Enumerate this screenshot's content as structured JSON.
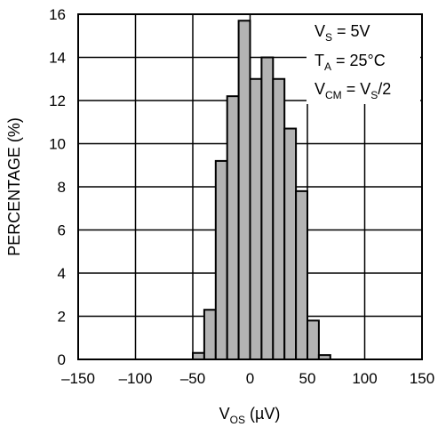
{
  "chart_data": {
    "type": "bar",
    "xlabel": {
      "main": "V",
      "sub": "OS",
      "unit": " (µV)"
    },
    "ylabel": "PERCENTAGE (%)",
    "xlim": [
      -150,
      150
    ],
    "ylim": [
      0,
      16
    ],
    "xticks": [
      -150,
      -100,
      -50,
      0,
      50,
      100,
      150
    ],
    "yticks": [
      0,
      2,
      4,
      6,
      8,
      10,
      12,
      14,
      16
    ],
    "grid": true,
    "legend_position": "top-right",
    "annotations": [
      {
        "main": "V",
        "sub": "S",
        "rest": " = 5V"
      },
      {
        "main": "T",
        "sub": "A",
        "rest": " = 25°C"
      },
      {
        "main": "V",
        "sub": "CM",
        "rest": " = V",
        "sub2": "S",
        "rest2": "/2"
      }
    ],
    "bin_width": 10,
    "bins": [
      {
        "x0": -50,
        "value": 0.3
      },
      {
        "x0": -40,
        "value": 2.3
      },
      {
        "x0": -30,
        "value": 9.2
      },
      {
        "x0": -20,
        "value": 12.2
      },
      {
        "x0": -10,
        "value": 15.7
      },
      {
        "x0": 0,
        "value": 13.0
      },
      {
        "x0": 10,
        "value": 14.0
      },
      {
        "x0": 20,
        "value": 13.0
      },
      {
        "x0": 30,
        "value": 10.7
      },
      {
        "x0": 40,
        "value": 7.8
      },
      {
        "x0": 50,
        "value": 1.8
      },
      {
        "x0": 60,
        "value": 0.2
      }
    ],
    "colors": {
      "bar": "#b3b3b3",
      "outline": "#000000",
      "grid": "#000000"
    }
  }
}
